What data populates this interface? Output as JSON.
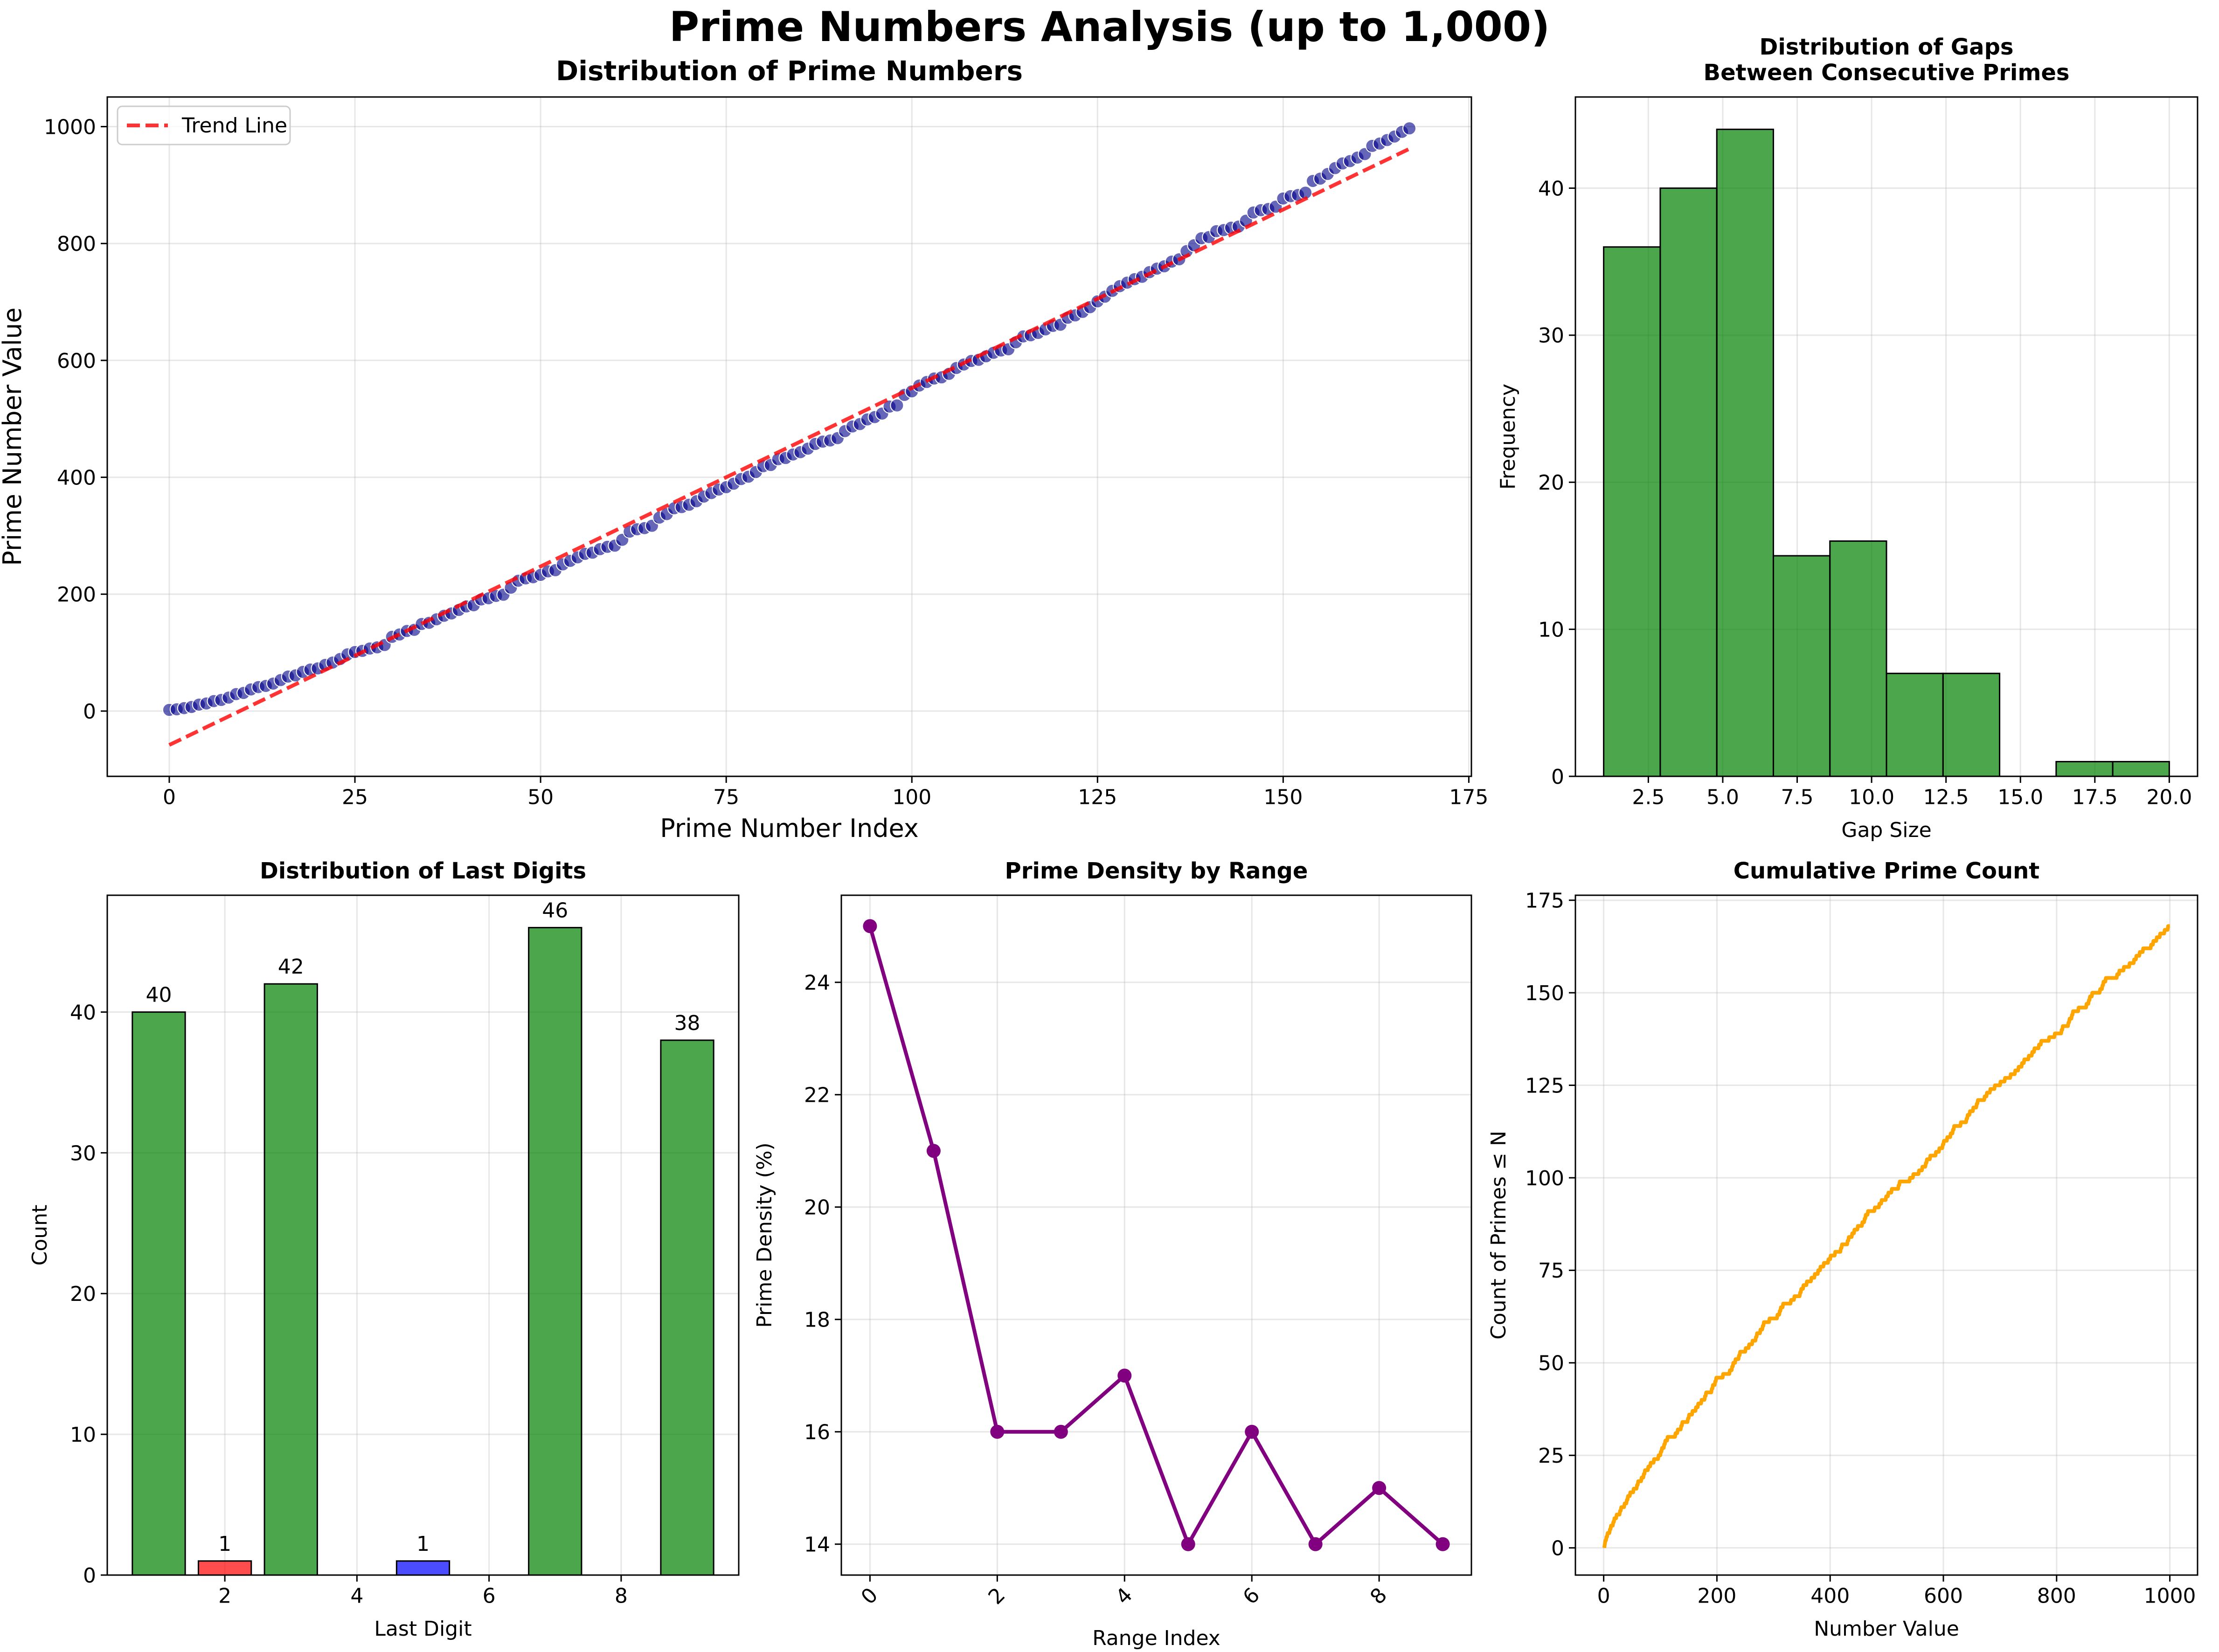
{
  "figure": {
    "title": "Prime Numbers Analysis (up to 1,000)"
  },
  "colors": {
    "scatter": "#00008b",
    "trend": "#ff0000",
    "hist": "#008000",
    "bar_green": "#008000",
    "bar_red": "#ff0000",
    "bar_blue": "#0000ff",
    "density": "#800080",
    "cumulative": "#ffa500"
  },
  "chart_data": [
    {
      "id": "primes",
      "type": "scatter",
      "title": "Distribution of Prime Numbers",
      "xlabel": "Prime Number Index",
      "ylabel": "Prime Number Value",
      "xlim": [
        -8.35,
        175.35
      ],
      "ylim": [
        -111.7,
        1050.7
      ],
      "xticks": [
        0,
        25,
        50,
        75,
        100,
        125,
        150,
        175
      ],
      "yticks": [
        0,
        200,
        400,
        600,
        800,
        1000
      ],
      "grid": true,
      "legend": "top-left",
      "series": [
        {
          "name": "",
          "kind": "scatter",
          "note": "all 168 primes up to 1,000 plotted against their index"
        },
        {
          "name": "Trend Line",
          "kind": "dashed-line",
          "x": [
            0,
            167
          ],
          "y": [
            -58,
            962
          ]
        }
      ]
    },
    {
      "id": "gaps",
      "type": "bar",
      "title": "Distribution of Gaps\nBetween Consecutive Primes",
      "xlabel": "Gap Size",
      "ylabel": "Frequency",
      "xlim": [
        0.05,
        20.95
      ],
      "ylim": [
        0,
        46.2
      ],
      "xticks": [
        2.5,
        5.0,
        7.5,
        10.0,
        12.5,
        15.0,
        17.5,
        20.0
      ],
      "yticks": [
        0,
        10,
        20,
        30,
        40
      ],
      "grid": true,
      "bin_edges": [
        1.0,
        2.9,
        4.8,
        6.7,
        8.6,
        10.5,
        12.4,
        14.3,
        16.2,
        18.1,
        20.0
      ],
      "values": [
        36,
        40,
        44,
        15,
        16,
        7,
        7,
        0,
        1,
        1
      ]
    },
    {
      "id": "last_digits",
      "type": "bar",
      "title": "Distribution of Last Digits",
      "xlabel": "Last Digit",
      "ylabel": "Count",
      "xlim": [
        0.22,
        9.78
      ],
      "ylim": [
        0,
        48.3
      ],
      "xticks": [
        2,
        4,
        6,
        8
      ],
      "yticks": [
        0,
        10,
        20,
        30,
        40
      ],
      "grid": true,
      "categories": [
        1,
        2,
        3,
        5,
        7,
        9
      ],
      "values": [
        40,
        1,
        42,
        1,
        46,
        38
      ],
      "labels": [
        "40",
        "1",
        "42",
        "1",
        "46",
        "38"
      ],
      "bar_colors": [
        "bar_green",
        "bar_red",
        "bar_green",
        "bar_blue",
        "bar_green",
        "bar_green"
      ]
    },
    {
      "id": "density",
      "type": "line",
      "title": "Prime Density by Range",
      "xlabel": "Range Index",
      "ylabel": "Prime Density (%)",
      "xlim": [
        -0.45,
        9.45
      ],
      "ylim": [
        13.45,
        25.55
      ],
      "xticks": [
        0,
        2,
        4,
        6,
        8
      ],
      "yticks": [
        14,
        16,
        18,
        20,
        22,
        24
      ],
      "grid": true,
      "x": [
        0,
        1,
        2,
        3,
        4,
        5,
        6,
        7,
        8,
        9
      ],
      "values": [
        25,
        21,
        16,
        16,
        17,
        14,
        16,
        14,
        15,
        14
      ]
    },
    {
      "id": "cumulative",
      "type": "line",
      "title": "Cumulative Prime Count",
      "xlabel": "Number Value",
      "ylabel": "Count of Primes ≤ N",
      "xlim": [
        -49.95,
        1048.95
      ],
      "ylim": [
        -7.35,
        176.35
      ],
      "xticks": [
        0,
        200,
        400,
        600,
        800,
        1000
      ],
      "yticks": [
        0,
        25,
        50,
        75,
        100,
        125,
        150,
        175
      ],
      "grid": true,
      "note": "step count π(N) of primes ≤ N for N = 1 … 1,000; reaches 168 at N = 1,000"
    }
  ]
}
